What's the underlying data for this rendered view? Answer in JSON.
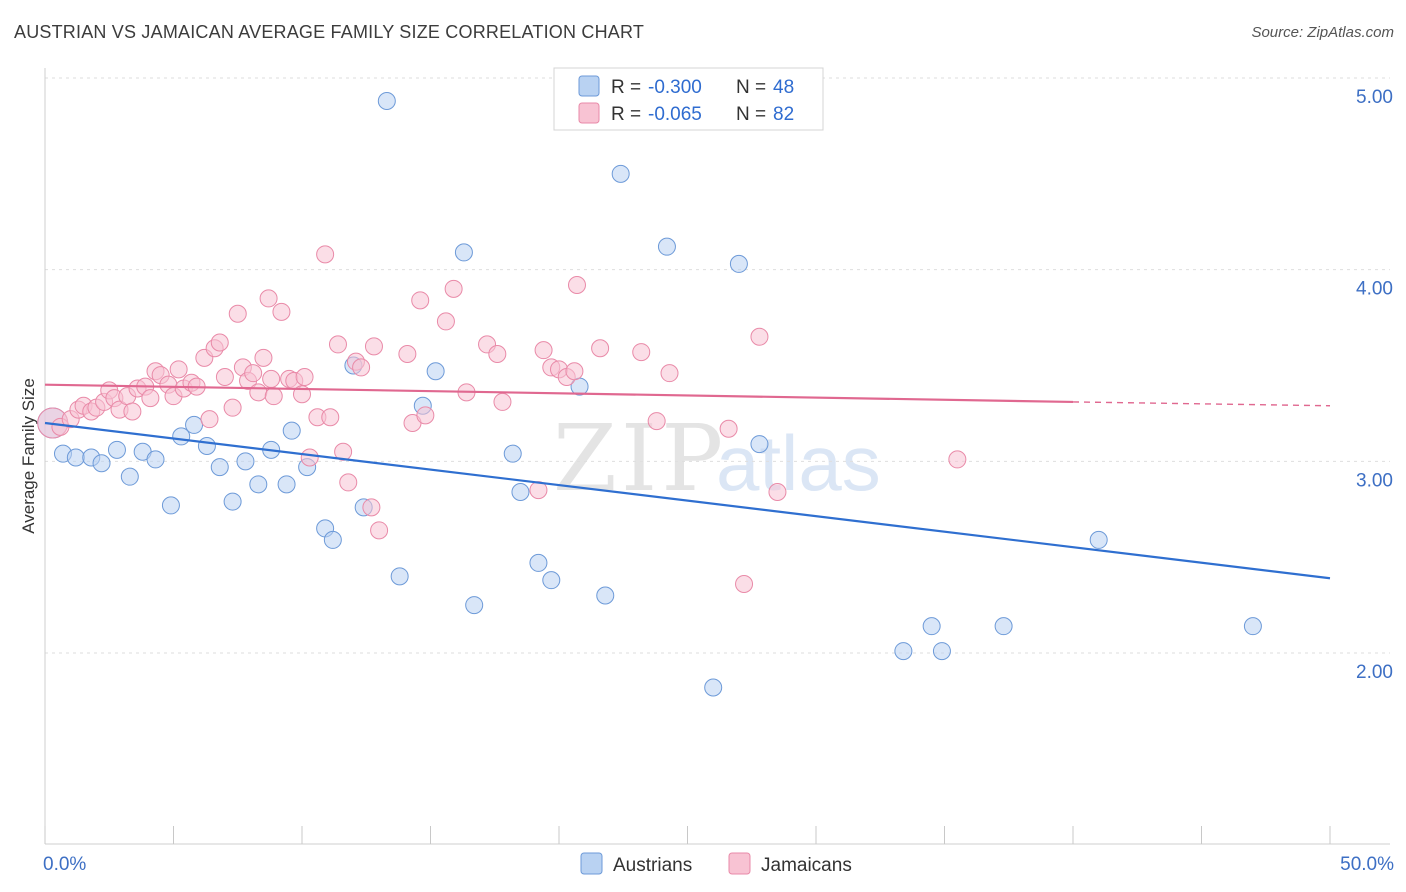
{
  "header": {
    "title": "AUSTRIAN VS JAMAICAN AVERAGE FAMILY SIZE CORRELATION CHART",
    "source": "Source: ZipAtlas.com"
  },
  "watermark": {
    "zip": "ZIP",
    "atlas": "atlas"
  },
  "colors": {
    "austrians_fill": "#b9d2f2",
    "austrians_stroke": "#6d9ad8",
    "austrians_line": "#2f6fd0",
    "jamaicans_fill": "#f8c3d3",
    "jamaicans_stroke": "#e98aa8",
    "jamaicans_line": "#e06890",
    "grid": "#dedede",
    "tick_text": "#3d6fc4"
  },
  "legend": {
    "rows": [
      {
        "r_label": "R = ",
        "r_value": "-0.300",
        "n_label": "N = ",
        "n_value": "48"
      },
      {
        "r_label": "R = ",
        "r_value": "-0.065",
        "n_label": "N = ",
        "n_value": "82"
      }
    ]
  },
  "chart_data": {
    "type": "scatter",
    "title": "AUSTRIAN VS JAMAICAN AVERAGE FAMILY SIZE CORRELATION CHART",
    "ylabel": "Average Family Size",
    "xlabel": "",
    "xlim": [
      0,
      50
    ],
    "ylim": [
      1.0,
      5.1
    ],
    "x_tick_labels": [
      "0.0%",
      "50.0%"
    ],
    "y_ticks": [
      2.0,
      3.0,
      4.0,
      5.0
    ],
    "y_tick_labels": [
      "2.00",
      "3.00",
      "4.00",
      "5.00"
    ],
    "grid": true,
    "legend_position": "top-center",
    "series": [
      {
        "name": "Austrians",
        "r": -0.3,
        "n": 48,
        "trend": {
          "x": [
            0,
            50
          ],
          "y": [
            3.2,
            2.39
          ]
        },
        "points": [
          [
            0.3,
            3.2
          ],
          [
            0.7,
            3.04
          ],
          [
            1.2,
            3.02
          ],
          [
            1.8,
            3.02
          ],
          [
            2.2,
            2.99
          ],
          [
            2.8,
            3.06
          ],
          [
            3.3,
            2.92
          ],
          [
            3.8,
            3.05
          ],
          [
            4.3,
            3.01
          ],
          [
            4.9,
            2.77
          ],
          [
            5.3,
            3.13
          ],
          [
            5.8,
            3.19
          ],
          [
            6.3,
            3.08
          ],
          [
            6.8,
            2.97
          ],
          [
            7.3,
            2.79
          ],
          [
            7.8,
            3.0
          ],
          [
            8.3,
            2.88
          ],
          [
            8.8,
            3.06
          ],
          [
            9.4,
            2.88
          ],
          [
            9.6,
            3.16
          ],
          [
            10.2,
            2.97
          ],
          [
            10.9,
            2.65
          ],
          [
            11.2,
            2.59
          ],
          [
            12.0,
            3.5
          ],
          [
            12.4,
            2.76
          ],
          [
            13.3,
            4.88
          ],
          [
            13.8,
            2.4
          ],
          [
            14.7,
            3.29
          ],
          [
            15.2,
            3.47
          ],
          [
            16.3,
            4.09
          ],
          [
            16.7,
            2.25
          ],
          [
            18.2,
            3.04
          ],
          [
            18.5,
            2.84
          ],
          [
            19.2,
            2.47
          ],
          [
            19.7,
            2.38
          ],
          [
            20.8,
            3.39
          ],
          [
            21.8,
            2.3
          ],
          [
            22.4,
            4.5
          ],
          [
            24.2,
            4.12
          ],
          [
            26.0,
            1.82
          ],
          [
            27.0,
            4.03
          ],
          [
            27.8,
            3.09
          ],
          [
            41.0,
            2.59
          ],
          [
            33.4,
            2.01
          ],
          [
            34.5,
            2.14
          ],
          [
            34.9,
            2.01
          ],
          [
            37.3,
            2.14
          ],
          [
            47.0,
            2.14
          ]
        ]
      },
      {
        "name": "Jamaicans",
        "r": -0.065,
        "n": 82,
        "trend": {
          "x": [
            0,
            40
          ],
          "y": [
            3.4,
            3.31
          ]
        },
        "trend_dashed": {
          "x": [
            40,
            50
          ],
          "y": [
            3.31,
            3.29
          ]
        },
        "points": [
          [
            0.3,
            3.2
          ],
          [
            0.6,
            3.18
          ],
          [
            1.0,
            3.22
          ],
          [
            1.3,
            3.27
          ],
          [
            1.5,
            3.29
          ],
          [
            1.8,
            3.26
          ],
          [
            2.0,
            3.28
          ],
          [
            2.3,
            3.31
          ],
          [
            2.5,
            3.37
          ],
          [
            2.7,
            3.33
          ],
          [
            2.9,
            3.27
          ],
          [
            3.2,
            3.34
          ],
          [
            3.4,
            3.26
          ],
          [
            3.6,
            3.38
          ],
          [
            3.9,
            3.39
          ],
          [
            4.1,
            3.33
          ],
          [
            4.3,
            3.47
          ],
          [
            4.5,
            3.45
          ],
          [
            4.8,
            3.4
          ],
          [
            5.0,
            3.34
          ],
          [
            5.2,
            3.48
          ],
          [
            5.4,
            3.38
          ],
          [
            5.7,
            3.41
          ],
          [
            5.9,
            3.39
          ],
          [
            6.2,
            3.54
          ],
          [
            6.4,
            3.22
          ],
          [
            6.6,
            3.59
          ],
          [
            6.8,
            3.62
          ],
          [
            7.0,
            3.44
          ],
          [
            7.3,
            3.28
          ],
          [
            7.5,
            3.77
          ],
          [
            7.7,
            3.49
          ],
          [
            7.9,
            3.42
          ],
          [
            8.1,
            3.46
          ],
          [
            8.3,
            3.36
          ],
          [
            8.5,
            3.54
          ],
          [
            8.7,
            3.85
          ],
          [
            8.9,
            3.34
          ],
          [
            9.2,
            3.78
          ],
          [
            9.5,
            3.43
          ],
          [
            9.7,
            3.42
          ],
          [
            10.0,
            3.35
          ],
          [
            10.3,
            3.02
          ],
          [
            10.6,
            3.23
          ],
          [
            10.9,
            4.08
          ],
          [
            11.1,
            3.23
          ],
          [
            11.4,
            3.61
          ],
          [
            11.6,
            3.05
          ],
          [
            11.8,
            2.89
          ],
          [
            12.1,
            3.52
          ],
          [
            12.3,
            3.49
          ],
          [
            12.8,
            3.6
          ],
          [
            12.7,
            2.76
          ],
          [
            13.0,
            2.64
          ],
          [
            14.1,
            3.56
          ],
          [
            14.3,
            3.2
          ],
          [
            14.6,
            3.84
          ],
          [
            14.8,
            3.24
          ],
          [
            15.6,
            3.73
          ],
          [
            15.9,
            3.9
          ],
          [
            16.4,
            3.36
          ],
          [
            17.2,
            3.61
          ],
          [
            17.6,
            3.56
          ],
          [
            17.8,
            3.31
          ],
          [
            19.2,
            2.85
          ],
          [
            19.4,
            3.58
          ],
          [
            19.7,
            3.49
          ],
          [
            20.0,
            3.48
          ],
          [
            20.3,
            3.44
          ],
          [
            20.6,
            3.47
          ],
          [
            20.7,
            3.92
          ],
          [
            21.6,
            3.59
          ],
          [
            23.2,
            3.57
          ],
          [
            23.8,
            3.21
          ],
          [
            24.3,
            3.46
          ],
          [
            26.6,
            3.17
          ],
          [
            27.2,
            2.36
          ],
          [
            27.8,
            3.65
          ],
          [
            28.5,
            2.84
          ],
          [
            35.5,
            3.01
          ],
          [
            10.1,
            3.44
          ],
          [
            8.8,
            3.43
          ]
        ]
      }
    ]
  }
}
